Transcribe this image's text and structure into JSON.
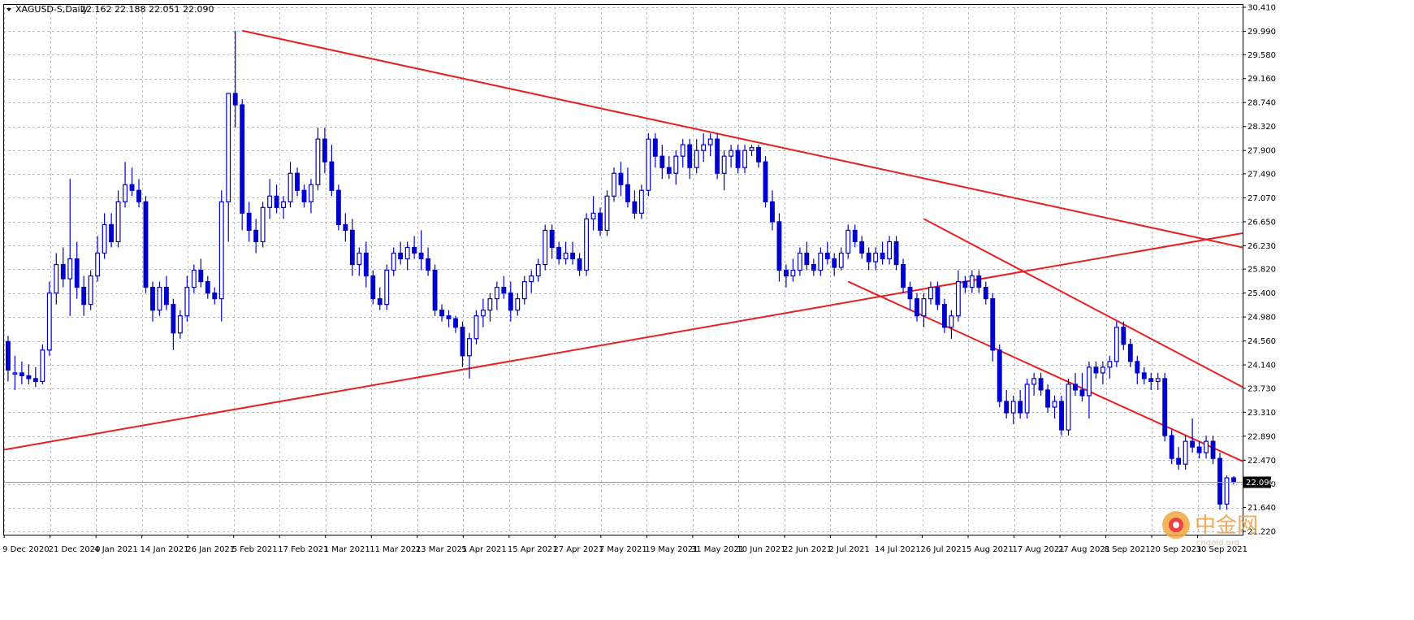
{
  "header": {
    "symbol_label": "XAGUSD-S,Daily",
    "ohlc_label": "22.162 22.188 22.051 22.090"
  },
  "watermark": {
    "brand": "中金网",
    "site": "cngold.org"
  },
  "colors": {
    "candle": "#0000cc",
    "trendline": "#e8201f",
    "grid": "#b9c0c8",
    "bid_line": "#8a9aaa",
    "price_label_bg": "#000000"
  },
  "chart_data": {
    "type": "candlestick",
    "instrument": "XAGUSD-S",
    "timeframe": "Daily",
    "y_ticks": [
      "30.410",
      "29.990",
      "29.580",
      "29.160",
      "28.740",
      "28.320",
      "27.900",
      "27.490",
      "27.070",
      "26.650",
      "26.230",
      "25.820",
      "25.400",
      "24.980",
      "24.560",
      "24.140",
      "23.730",
      "23.310",
      "22.890",
      "22.470",
      "22.050",
      "21.640",
      "21.220"
    ],
    "ylim": [
      21.22,
      30.41
    ],
    "x_ticks": [
      "9 Dec 2020",
      "21 Dec 2020",
      "4 Jan 2021",
      "14 Jan 2021",
      "26 Jan 2021",
      "5 Feb 2021",
      "17 Feb 2021",
      "1 Mar 2021",
      "11 Mar 2021",
      "23 Mar 2021",
      "5 Apr 2021",
      "15 Apr 2021",
      "27 Apr 2021",
      "7 May 2021",
      "19 May 2021",
      "31 May 2021",
      "10 Jun 2021",
      "22 Jun 2021",
      "2 Jul 2021",
      "14 Jul 2021",
      "26 Jul 2021",
      "5 Aug 2021",
      "17 Aug 2021",
      "27 Aug 2021",
      "8 Sep 2021",
      "20 Sep 2021",
      "30 Sep 2021"
    ],
    "current_price": "22.090",
    "candles": [
      [
        24.55,
        24.65,
        23.85,
        24.05
      ],
      [
        24.0,
        24.3,
        23.7,
        24.0
      ],
      [
        24.0,
        24.2,
        23.8,
        23.95
      ],
      [
        23.95,
        24.15,
        23.8,
        23.9
      ],
      [
        23.9,
        24.1,
        23.75,
        23.85
      ],
      [
        23.85,
        24.5,
        23.8,
        24.4
      ],
      [
        24.4,
        25.6,
        24.3,
        25.4
      ],
      [
        25.4,
        26.1,
        25.2,
        25.9
      ],
      [
        25.9,
        26.2,
        25.5,
        25.65
      ],
      [
        25.65,
        27.4,
        25.0,
        26.0
      ],
      [
        26.0,
        26.3,
        25.3,
        25.5
      ],
      [
        25.5,
        25.7,
        25.0,
        25.2
      ],
      [
        25.2,
        25.8,
        25.1,
        25.7
      ],
      [
        25.7,
        26.4,
        25.6,
        26.1
      ],
      [
        26.1,
        26.8,
        26.0,
        26.6
      ],
      [
        26.6,
        26.8,
        26.2,
        26.3
      ],
      [
        26.3,
        27.2,
        26.2,
        27.0
      ],
      [
        27.0,
        27.7,
        26.9,
        27.3
      ],
      [
        27.3,
        27.6,
        27.1,
        27.2
      ],
      [
        27.2,
        27.4,
        26.9,
        27.0
      ],
      [
        27.0,
        27.1,
        25.4,
        25.5
      ],
      [
        25.5,
        25.6,
        24.9,
        25.1
      ],
      [
        25.1,
        25.6,
        25.0,
        25.5
      ],
      [
        25.5,
        25.7,
        25.1,
        25.2
      ],
      [
        25.2,
        25.3,
        24.4,
        24.7
      ],
      [
        24.7,
        25.1,
        24.6,
        25.0
      ],
      [
        25.0,
        25.7,
        24.9,
        25.5
      ],
      [
        25.5,
        25.9,
        25.4,
        25.8
      ],
      [
        25.8,
        26.0,
        25.5,
        25.6
      ],
      [
        25.6,
        25.7,
        25.3,
        25.4
      ],
      [
        25.4,
        25.5,
        25.2,
        25.3
      ],
      [
        25.3,
        27.2,
        24.9,
        27.0
      ],
      [
        27.0,
        28.9,
        26.3,
        28.9
      ],
      [
        28.9,
        30.0,
        28.3,
        28.7
      ],
      [
        28.7,
        28.8,
        26.5,
        26.8
      ],
      [
        26.8,
        27.0,
        26.3,
        26.5
      ],
      [
        26.5,
        26.7,
        26.1,
        26.3
      ],
      [
        26.3,
        27.0,
        26.2,
        26.9
      ],
      [
        26.9,
        27.4,
        26.7,
        27.1
      ],
      [
        27.1,
        27.3,
        26.8,
        26.9
      ],
      [
        26.9,
        27.1,
        26.7,
        27.0
      ],
      [
        27.0,
        27.7,
        26.9,
        27.5
      ],
      [
        27.5,
        27.6,
        27.1,
        27.2
      ],
      [
        27.2,
        27.3,
        26.9,
        27.0
      ],
      [
        27.0,
        27.4,
        26.8,
        27.3
      ],
      [
        27.3,
        28.3,
        27.2,
        28.1
      ],
      [
        28.1,
        28.3,
        27.5,
        27.7
      ],
      [
        27.7,
        28.0,
        27.1,
        27.2
      ],
      [
        27.2,
        27.3,
        26.5,
        26.6
      ],
      [
        26.6,
        26.8,
        26.3,
        26.5
      ],
      [
        26.5,
        26.7,
        25.7,
        25.9
      ],
      [
        25.9,
        26.2,
        25.7,
        26.1
      ],
      [
        26.1,
        26.3,
        25.5,
        25.7
      ],
      [
        25.7,
        25.8,
        25.2,
        25.3
      ],
      [
        25.3,
        25.5,
        25.1,
        25.2
      ],
      [
        25.2,
        25.9,
        25.1,
        25.8
      ],
      [
        25.8,
        26.2,
        25.7,
        26.1
      ],
      [
        26.1,
        26.3,
        25.9,
        26.0
      ],
      [
        26.0,
        26.3,
        25.8,
        26.2
      ],
      [
        26.2,
        26.4,
        26.0,
        26.1
      ],
      [
        26.1,
        26.5,
        25.8,
        26.0
      ],
      [
        26.0,
        26.2,
        25.7,
        25.8
      ],
      [
        25.8,
        25.9,
        25.0,
        25.1
      ],
      [
        25.1,
        25.2,
        24.9,
        25.0
      ],
      [
        25.0,
        25.1,
        24.8,
        24.95
      ],
      [
        24.95,
        25.0,
        24.7,
        24.8
      ],
      [
        24.8,
        24.9,
        24.1,
        24.3
      ],
      [
        24.3,
        24.7,
        23.9,
        24.6
      ],
      [
        24.6,
        25.1,
        24.5,
        25.0
      ],
      [
        25.0,
        25.3,
        24.8,
        25.1
      ],
      [
        25.1,
        25.4,
        24.9,
        25.3
      ],
      [
        25.3,
        25.6,
        25.1,
        25.5
      ],
      [
        25.5,
        25.7,
        25.3,
        25.4
      ],
      [
        25.4,
        25.6,
        24.9,
        25.1
      ],
      [
        25.1,
        25.4,
        25.0,
        25.3
      ],
      [
        25.3,
        25.7,
        25.2,
        25.6
      ],
      [
        25.6,
        25.8,
        25.4,
        25.7
      ],
      [
        25.7,
        26.0,
        25.6,
        25.9
      ],
      [
        25.9,
        26.6,
        25.8,
        26.5
      ],
      [
        26.5,
        26.6,
        26.0,
        26.2
      ],
      [
        26.2,
        26.3,
        25.9,
        26.0
      ],
      [
        26.0,
        26.3,
        25.9,
        26.1
      ],
      [
        26.1,
        26.3,
        25.9,
        26.0
      ],
      [
        26.0,
        26.1,
        25.7,
        25.8
      ],
      [
        25.8,
        26.8,
        25.7,
        26.7
      ],
      [
        26.7,
        27.1,
        26.5,
        26.8
      ],
      [
        26.8,
        26.9,
        26.4,
        26.5
      ],
      [
        26.5,
        27.2,
        26.4,
        27.1
      ],
      [
        27.1,
        27.6,
        27.0,
        27.5
      ],
      [
        27.5,
        27.7,
        27.1,
        27.3
      ],
      [
        27.3,
        27.6,
        26.9,
        27.0
      ],
      [
        27.0,
        27.2,
        26.7,
        26.8
      ],
      [
        26.8,
        27.3,
        26.7,
        27.2
      ],
      [
        27.2,
        28.2,
        27.1,
        28.1
      ],
      [
        28.1,
        28.2,
        27.6,
        27.8
      ],
      [
        27.8,
        28.0,
        27.4,
        27.6
      ],
      [
        27.6,
        27.8,
        27.4,
        27.5
      ],
      [
        27.5,
        27.9,
        27.3,
        27.8
      ],
      [
        27.8,
        28.1,
        27.6,
        28.0
      ],
      [
        28.0,
        28.1,
        27.4,
        27.6
      ],
      [
        27.6,
        28.1,
        27.5,
        27.9
      ],
      [
        27.9,
        28.2,
        27.7,
        28.0
      ],
      [
        28.0,
        28.2,
        27.8,
        28.1
      ],
      [
        28.1,
        28.2,
        27.4,
        27.5
      ],
      [
        27.5,
        27.9,
        27.2,
        27.8
      ],
      [
        27.8,
        28.0,
        27.6,
        27.9
      ],
      [
        27.9,
        28.0,
        27.5,
        27.6
      ],
      [
        27.6,
        28.0,
        27.5,
        27.9
      ],
      [
        27.9,
        28.0,
        27.8,
        27.95
      ],
      [
        27.95,
        28.0,
        27.6,
        27.7
      ],
      [
        27.7,
        27.8,
        26.9,
        27.0
      ],
      [
        27.0,
        27.2,
        26.5,
        26.65
      ],
      [
        26.65,
        26.8,
        25.6,
        25.8
      ],
      [
        25.8,
        25.9,
        25.5,
        25.7
      ],
      [
        25.7,
        26.0,
        25.6,
        25.8
      ],
      [
        25.8,
        26.2,
        25.7,
        26.1
      ],
      [
        26.1,
        26.3,
        25.8,
        25.9
      ],
      [
        25.9,
        26.0,
        25.7,
        25.8
      ],
      [
        25.8,
        26.2,
        25.7,
        26.1
      ],
      [
        26.1,
        26.3,
        25.9,
        26.0
      ],
      [
        26.0,
        26.1,
        25.7,
        25.85
      ],
      [
        25.85,
        26.2,
        25.8,
        26.1
      ],
      [
        26.1,
        26.6,
        26.0,
        26.5
      ],
      [
        26.5,
        26.6,
        26.2,
        26.3
      ],
      [
        26.3,
        26.4,
        26.0,
        26.1
      ],
      [
        26.1,
        26.2,
        25.8,
        25.95
      ],
      [
        25.95,
        26.2,
        25.8,
        26.1
      ],
      [
        26.1,
        26.3,
        25.9,
        26.0
      ],
      [
        26.0,
        26.4,
        25.9,
        26.3
      ],
      [
        26.3,
        26.4,
        25.8,
        25.9
      ],
      [
        25.9,
        26.0,
        25.4,
        25.5
      ],
      [
        25.5,
        25.6,
        25.1,
        25.3
      ],
      [
        25.3,
        25.4,
        24.9,
        25.0
      ],
      [
        25.0,
        25.4,
        24.8,
        25.3
      ],
      [
        25.3,
        25.6,
        25.2,
        25.5
      ],
      [
        25.5,
        25.6,
        25.1,
        25.2
      ],
      [
        25.2,
        25.3,
        24.7,
        24.8
      ],
      [
        24.8,
        25.1,
        24.6,
        25.0
      ],
      [
        25.0,
        25.8,
        24.9,
        25.6
      ],
      [
        25.6,
        25.7,
        25.4,
        25.5
      ],
      [
        25.5,
        25.8,
        25.4,
        25.7
      ],
      [
        25.7,
        25.8,
        25.4,
        25.5
      ],
      [
        25.5,
        25.6,
        25.2,
        25.3
      ],
      [
        25.3,
        25.4,
        24.2,
        24.4
      ],
      [
        24.4,
        24.5,
        23.4,
        23.5
      ],
      [
        23.5,
        23.7,
        23.2,
        23.3
      ],
      [
        23.3,
        23.6,
        23.1,
        23.5
      ],
      [
        23.5,
        23.7,
        23.2,
        23.3
      ],
      [
        23.3,
        23.9,
        23.2,
        23.8
      ],
      [
        23.8,
        24.0,
        23.6,
        23.9
      ],
      [
        23.9,
        24.0,
        23.6,
        23.7
      ],
      [
        23.7,
        23.8,
        23.3,
        23.4
      ],
      [
        23.4,
        23.6,
        23.2,
        23.5
      ],
      [
        23.5,
        23.6,
        22.9,
        23.0
      ],
      [
        23.0,
        23.9,
        22.9,
        23.8
      ],
      [
        23.8,
        24.0,
        23.6,
        23.7
      ],
      [
        23.7,
        24.0,
        23.5,
        23.6
      ],
      [
        23.6,
        24.2,
        23.2,
        24.1
      ],
      [
        24.1,
        24.2,
        23.9,
        24.0
      ],
      [
        24.0,
        24.2,
        23.8,
        24.1
      ],
      [
        24.1,
        24.3,
        23.9,
        24.2
      ],
      [
        24.2,
        24.9,
        24.1,
        24.8
      ],
      [
        24.8,
        24.9,
        24.4,
        24.5
      ],
      [
        24.5,
        24.6,
        24.1,
        24.2
      ],
      [
        24.2,
        24.3,
        23.8,
        24.0
      ],
      [
        24.0,
        24.1,
        23.8,
        23.9
      ],
      [
        23.9,
        24.0,
        23.7,
        23.85
      ],
      [
        23.85,
        24.0,
        23.7,
        23.9
      ],
      [
        23.9,
        24.0,
        22.8,
        22.9
      ],
      [
        22.9,
        23.0,
        22.4,
        22.5
      ],
      [
        22.5,
        22.7,
        22.3,
        22.4
      ],
      [
        22.4,
        22.9,
        22.3,
        22.8
      ],
      [
        22.8,
        23.2,
        22.6,
        22.7
      ],
      [
        22.7,
        22.8,
        22.5,
        22.6
      ],
      [
        22.6,
        22.9,
        22.5,
        22.8
      ],
      [
        22.8,
        22.9,
        22.4,
        22.5
      ],
      [
        22.5,
        22.6,
        21.6,
        21.7
      ],
      [
        21.7,
        22.2,
        21.6,
        22.16
      ],
      [
        22.16,
        22.19,
        22.05,
        22.09
      ]
    ],
    "trendlines": [
      {
        "from": {
          "bar": 34,
          "price": 30.0
        },
        "to": {
          "bar": "right-edge",
          "price": 26.2
        }
      },
      {
        "from": {
          "bar": -1,
          "price": 22.65
        },
        "to": {
          "bar": "right-edge",
          "price": 26.45
        }
      },
      {
        "from": {
          "bar": 133,
          "price": 26.7
        },
        "to": {
          "bar": "right-edge",
          "price": 23.75
        }
      },
      {
        "from": {
          "bar": 122,
          "price": 25.6
        },
        "to": {
          "bar": "right-edge",
          "price": 22.45
        }
      }
    ]
  }
}
